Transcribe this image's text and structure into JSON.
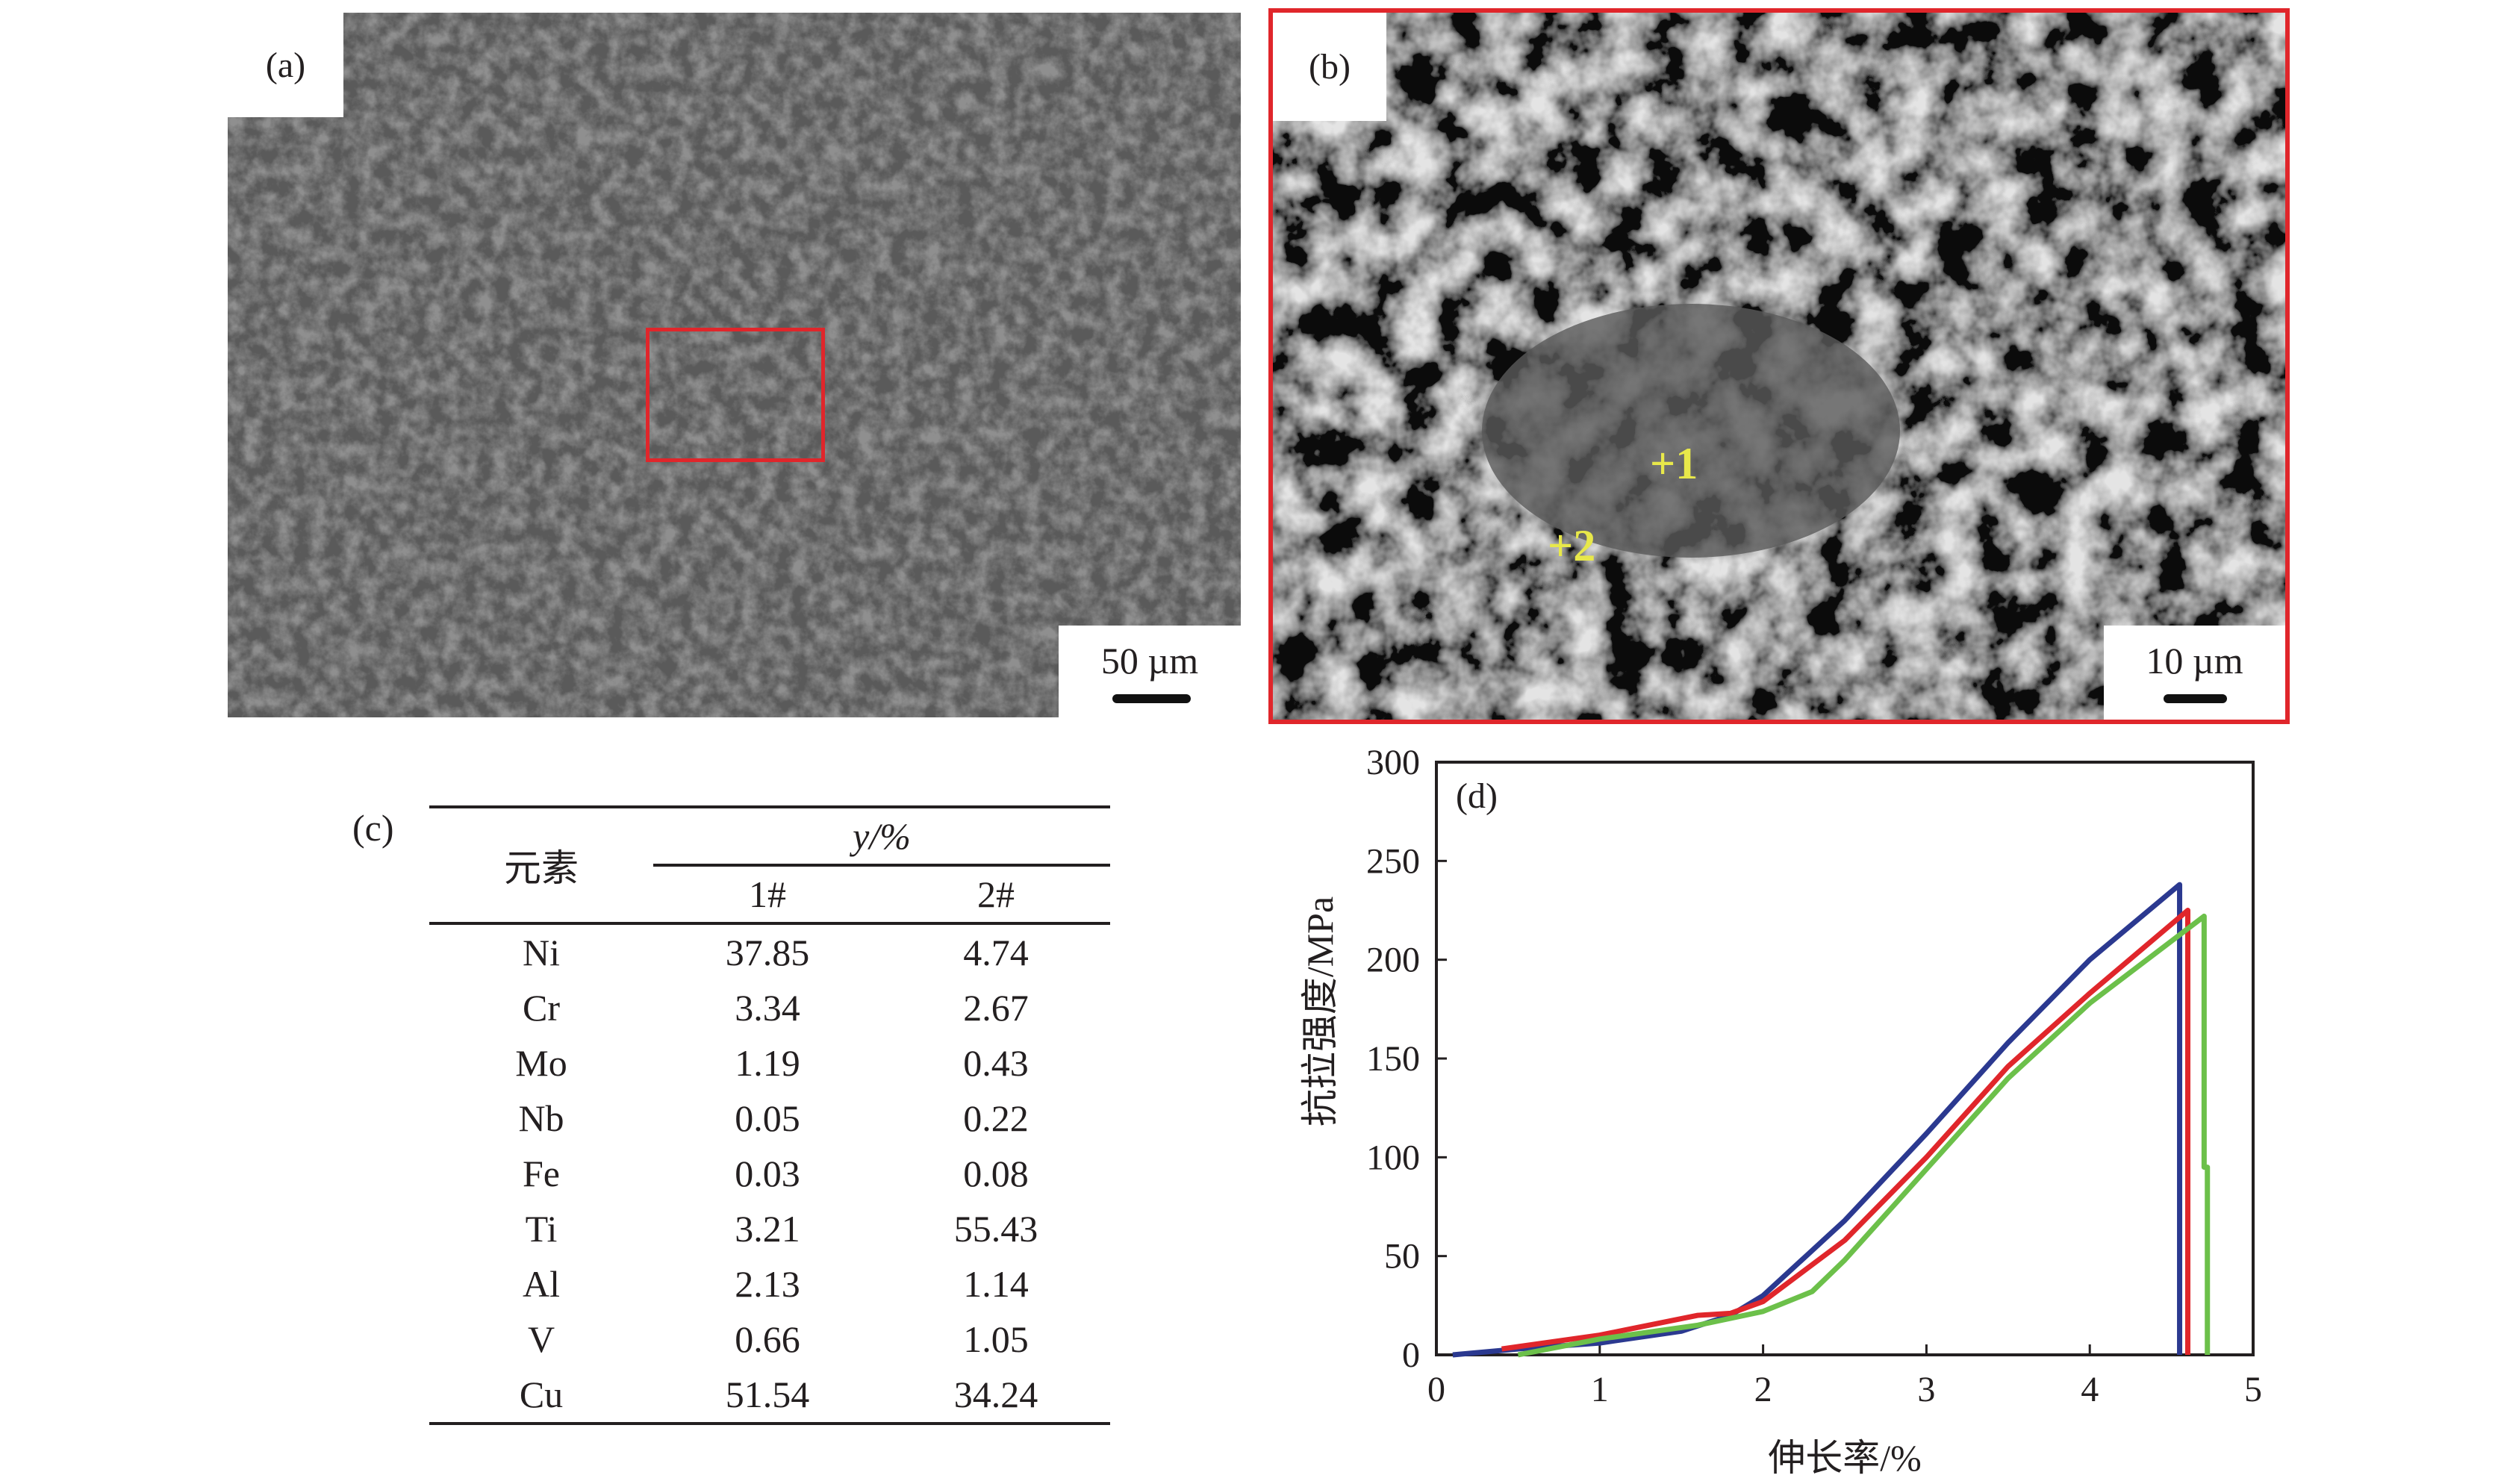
{
  "panels": {
    "a": {
      "label": "(a)",
      "scale": "50 µm"
    },
    "b": {
      "label": "(b)",
      "scale": "10 µm",
      "points": [
        "+1",
        "+2"
      ]
    },
    "c": {
      "label": "(c)"
    },
    "d": {
      "label": "(d)"
    }
  },
  "colors": {
    "highlight_box": "#e0262b",
    "marker": "#e8e84a",
    "blue": "#2b3990",
    "red": "#e0262b",
    "green": "#6cc04a"
  },
  "table": {
    "header_element": "元素",
    "header_group": "y/%",
    "columns": [
      "1#",
      "2#"
    ],
    "rows": [
      {
        "el": "Ni",
        "v1": "37.85",
        "v2": "4.74"
      },
      {
        "el": "Cr",
        "v1": "3.34",
        "v2": "2.67"
      },
      {
        "el": "Mo",
        "v1": "1.19",
        "v2": "0.43"
      },
      {
        "el": "Nb",
        "v1": "0.05",
        "v2": "0.22"
      },
      {
        "el": "Fe",
        "v1": "0.03",
        "v2": "0.08"
      },
      {
        "el": "Ti",
        "v1": "3.21",
        "v2": "55.43"
      },
      {
        "el": "Al",
        "v1": "2.13",
        "v2": "1.14"
      },
      {
        "el": "V",
        "v1": "0.66",
        "v2": "1.05"
      },
      {
        "el": "Cu",
        "v1": "51.54",
        "v2": "34.24"
      }
    ]
  },
  "chart_data": {
    "type": "line",
    "xlabel": "伸长率/%",
    "ylabel": "抗拉强度/MPa",
    "xlim": [
      0,
      5
    ],
    "ylim": [
      0,
      300
    ],
    "xticks": [
      "0",
      "1",
      "2",
      "3",
      "4",
      "5"
    ],
    "yticks": [
      "0",
      "50",
      "100",
      "150",
      "200",
      "250",
      "300"
    ],
    "grid": false,
    "series": [
      {
        "color": "#2b3990",
        "points": [
          [
            0.1,
            0
          ],
          [
            0.5,
            3
          ],
          [
            1,
            6
          ],
          [
            1.5,
            12
          ],
          [
            1.8,
            20
          ],
          [
            2,
            30
          ],
          [
            2.5,
            68
          ],
          [
            3,
            112
          ],
          [
            3.5,
            158
          ],
          [
            4,
            200
          ],
          [
            4.55,
            238
          ],
          [
            4.55,
            0
          ]
        ]
      },
      {
        "color": "#e0262b",
        "points": [
          [
            0.4,
            3
          ],
          [
            1,
            10
          ],
          [
            1.6,
            20
          ],
          [
            1.8,
            21
          ],
          [
            2,
            27
          ],
          [
            2.5,
            58
          ],
          [
            3,
            100
          ],
          [
            3.5,
            146
          ],
          [
            4,
            183
          ],
          [
            4.6,
            225
          ],
          [
            4.6,
            0
          ]
        ]
      },
      {
        "color": "#6cc04a",
        "points": [
          [
            0.5,
            0
          ],
          [
            1,
            8
          ],
          [
            1.6,
            15
          ],
          [
            2,
            22
          ],
          [
            2.3,
            32
          ],
          [
            2.5,
            48
          ],
          [
            3,
            94
          ],
          [
            3.5,
            140
          ],
          [
            4,
            178
          ],
          [
            4.7,
            222
          ],
          [
            4.7,
            95
          ],
          [
            4.72,
            95
          ],
          [
            4.72,
            0
          ]
        ]
      }
    ]
  }
}
